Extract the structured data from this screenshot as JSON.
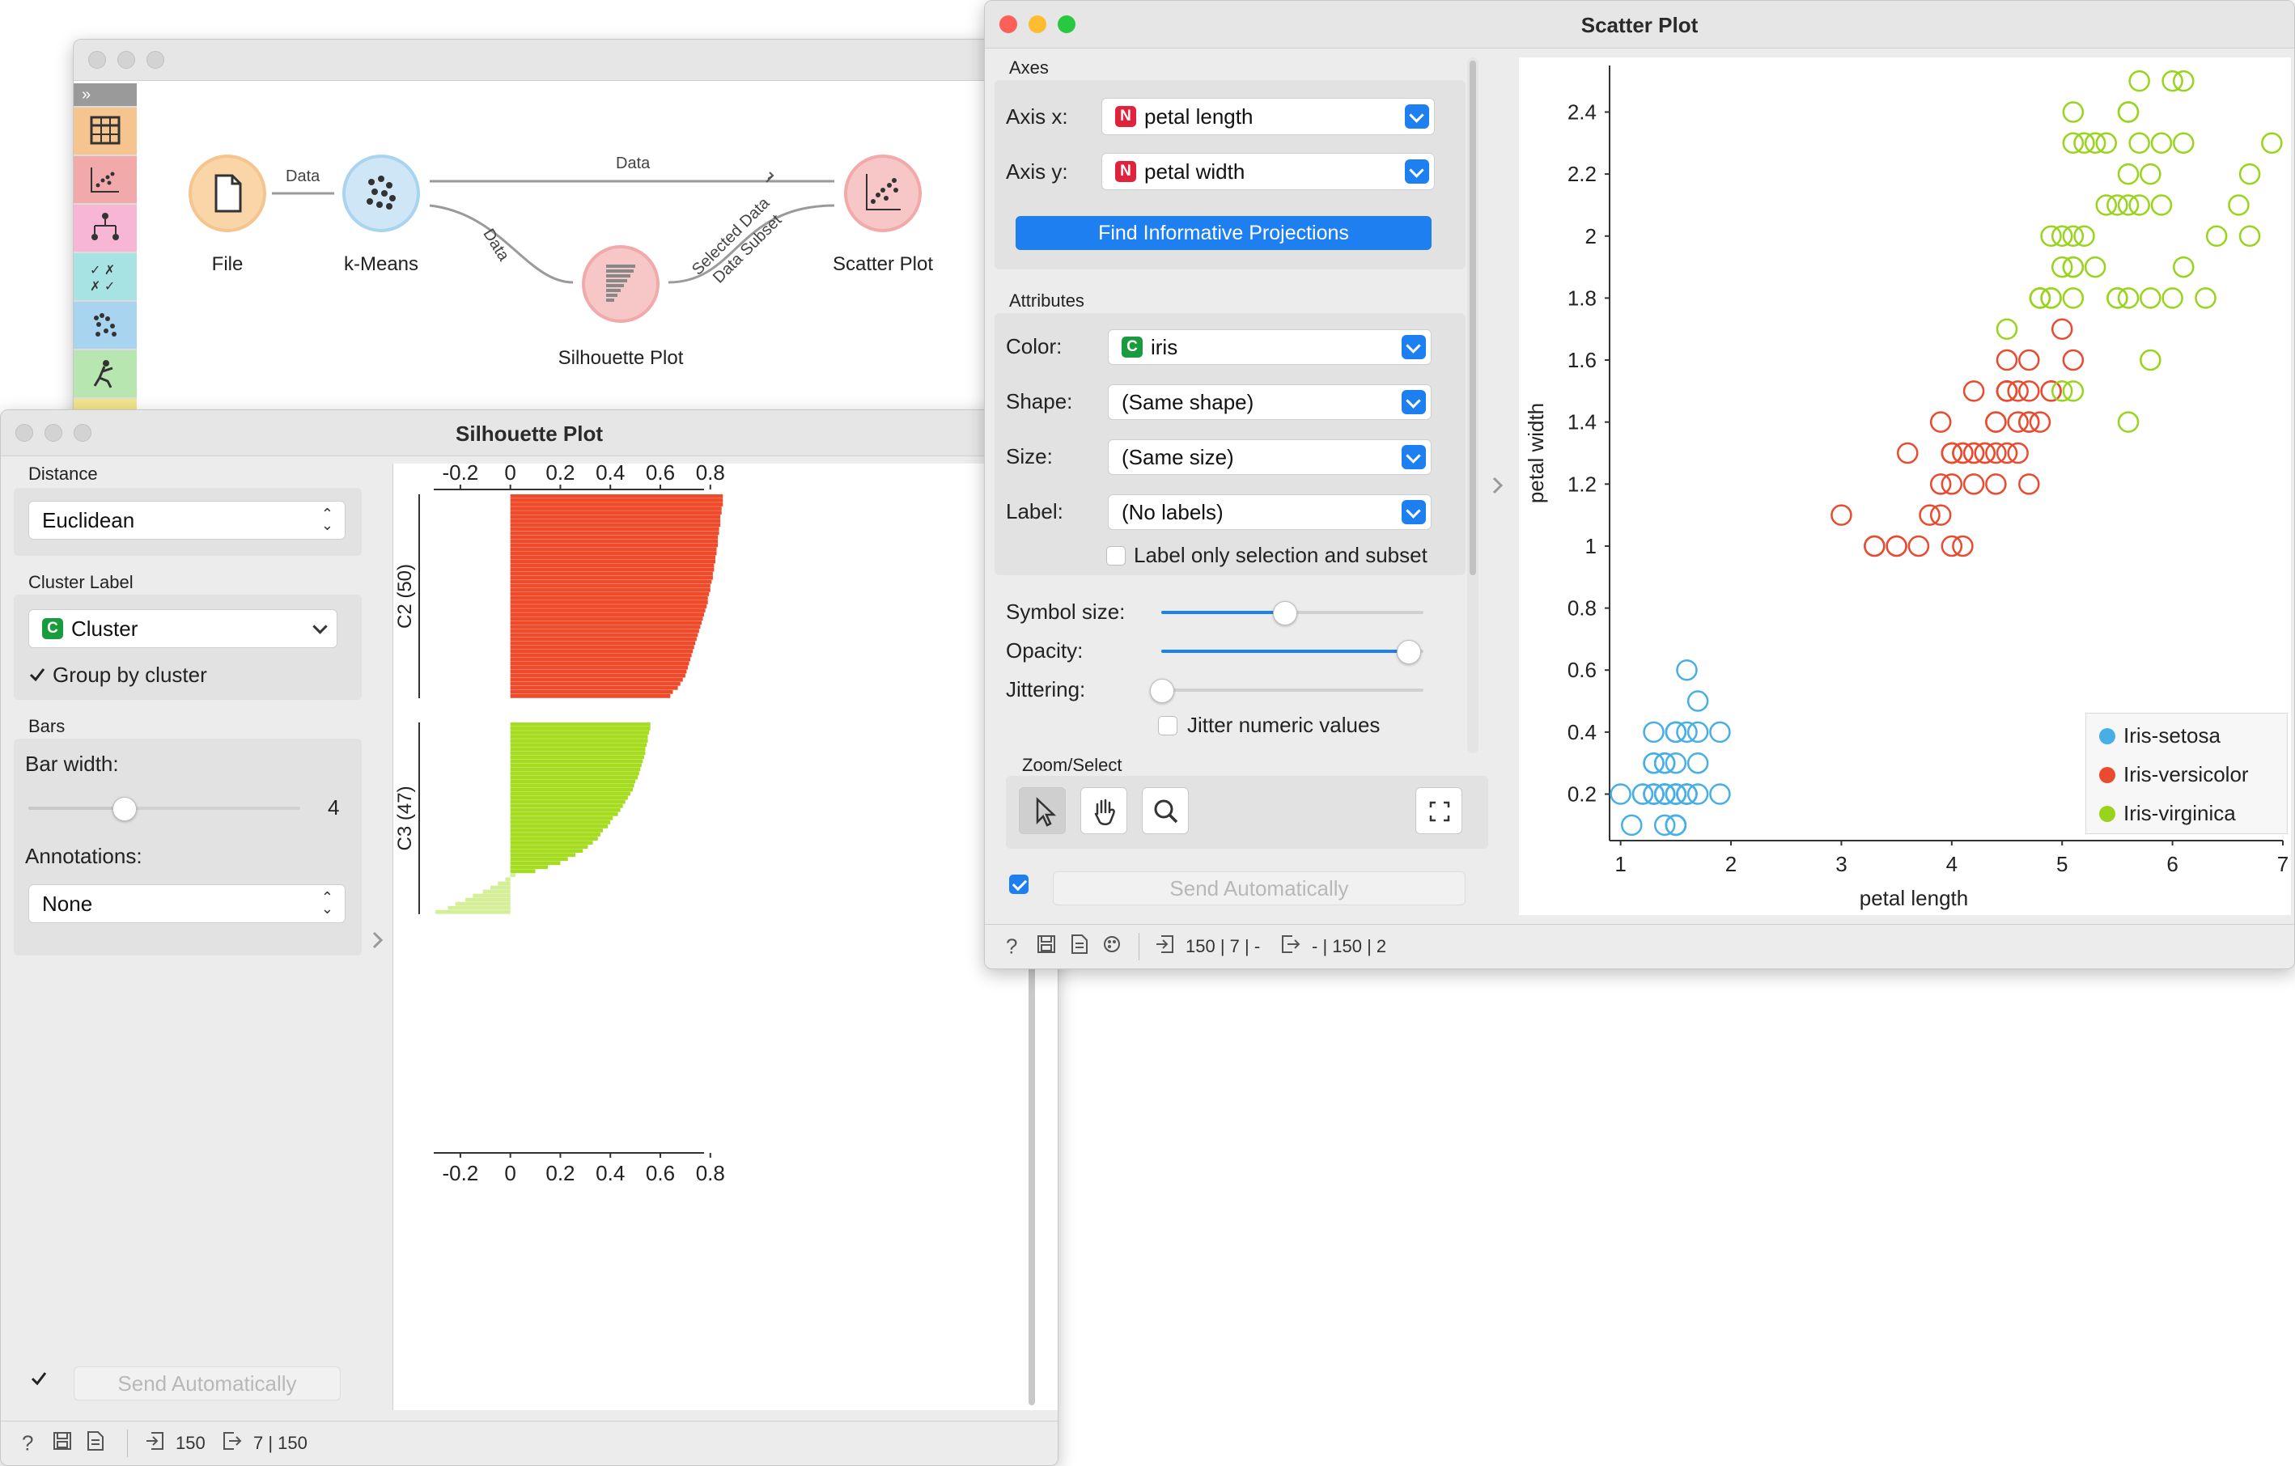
{
  "canvas": {
    "widgets": [
      {
        "id": "file",
        "label": "File"
      },
      {
        "id": "kmeans",
        "label": "k-Means"
      },
      {
        "id": "silhouette",
        "label": "Silhouette Plot"
      },
      {
        "id": "scatter",
        "label": "Scatter Plot"
      }
    ],
    "links": {
      "file_kmeans": "Data",
      "kmeans_scatter": "Data",
      "kmeans_silhouette": "Data",
      "silhouette_scatter_1": "Selected Data",
      "silhouette_scatter_2": "Data Subset"
    },
    "category_colors": [
      "#f6c48e",
      "#f2a9a9",
      "#f7b6d4",
      "#a8e3e3",
      "#a9d4ef",
      "#b8e6b0",
      "#f2e58c"
    ]
  },
  "silhouette": {
    "title": "Silhouette Plot",
    "distance_label": "Distance",
    "distance_value": "Euclidean",
    "cluster_label_title": "Cluster Label",
    "cluster_label_badge": "C",
    "cluster_label_value": "Cluster",
    "group_by_label": "Group by cluster",
    "group_by_checked": true,
    "bars_title": "Bars",
    "bar_width_label": "Bar width:",
    "bar_width_value": "4",
    "bar_width_fraction": 0.35,
    "annotations_label": "Annotations:",
    "annotations_value": "None",
    "send_label": "Send Automatically",
    "send_checked": true,
    "status_in": "150",
    "status_out": "7 | 150"
  },
  "scatter": {
    "title": "Scatter Plot",
    "axes_title": "Axes",
    "axis_x_label": "Axis x:",
    "axis_x_badge": "N",
    "axis_x_value": "petal length",
    "axis_y_label": "Axis y:",
    "axis_y_badge": "N",
    "axis_y_value": "petal width",
    "find_projections": "Find Informative Projections",
    "attributes_title": "Attributes",
    "color_label": "Color:",
    "color_badge": "C",
    "color_value": "iris",
    "shape_label": "Shape:",
    "shape_value": "(Same shape)",
    "size_label": "Size:",
    "size_value": "(Same size)",
    "label_label": "Label:",
    "label_value": "(No labels)",
    "label_only_selection": "Label only selection and subset",
    "symbol_size_label": "Symbol size:",
    "symbol_size_fraction": 0.47,
    "opacity_label": "Opacity:",
    "opacity_fraction": 0.94,
    "jittering_label": "Jittering:",
    "jittering_fraction": 0.0,
    "jitter_numeric": "Jitter numeric values",
    "zoom_select_title": "Zoom/Select",
    "send_label": "Send Automatically",
    "send_checked": true,
    "status_in": "150 | 7 | -",
    "status_out": "- | 150 | 2"
  },
  "colors": {
    "orange": "#ef4a2a",
    "green": "#a6dc20",
    "green_light": "#d5ee98",
    "blue": "#4aa3df",
    "setosa": "#47aee6",
    "versicolor": "#ea4a2f",
    "virginica": "#98d41c",
    "accent": "#1d7ff0"
  },
  "chart_data": [
    {
      "type": "bar",
      "orientation": "horizontal",
      "title": "",
      "xticks": [
        "-0.2",
        "0",
        "0.2",
        "0.4",
        "0.6",
        "0.8"
      ],
      "xlim": [
        -0.3,
        0.85
      ],
      "series": [
        {
          "name": "C2 (50)",
          "color": "#ef4a2a",
          "values": [
            0.85,
            0.85,
            0.85,
            0.845,
            0.845,
            0.84,
            0.84,
            0.84,
            0.835,
            0.835,
            0.83,
            0.83,
            0.83,
            0.825,
            0.825,
            0.82,
            0.82,
            0.815,
            0.815,
            0.81,
            0.81,
            0.805,
            0.8,
            0.8,
            0.795,
            0.79,
            0.79,
            0.785,
            0.78,
            0.775,
            0.77,
            0.765,
            0.76,
            0.755,
            0.75,
            0.745,
            0.74,
            0.735,
            0.73,
            0.725,
            0.72,
            0.715,
            0.71,
            0.705,
            0.7,
            0.69,
            0.68,
            0.67,
            0.65,
            0.64
          ]
        },
        {
          "name": "C3 (47)",
          "color": "#a6dc20",
          "values": [
            0.56,
            0.56,
            0.555,
            0.55,
            0.55,
            0.545,
            0.54,
            0.54,
            0.535,
            0.53,
            0.525,
            0.52,
            0.515,
            0.51,
            0.5,
            0.495,
            0.49,
            0.48,
            0.47,
            0.46,
            0.45,
            0.44,
            0.43,
            0.41,
            0.4,
            0.39,
            0.37,
            0.36,
            0.35,
            0.33,
            0.31,
            0.29,
            0.26,
            0.23,
            0.2,
            0.15,
            0.1,
            0.02,
            -0.02,
            -0.05,
            -0.08,
            -0.11,
            -0.15,
            -0.18,
            -0.22,
            -0.25,
            -0.3
          ]
        }
      ]
    },
    {
      "type": "scatter",
      "title": "",
      "xlabel": "petal length",
      "ylabel": "petal width",
      "xlim": [
        0.9,
        7
      ],
      "ylim": [
        0.05,
        2.55
      ],
      "xticks": [
        "1",
        "2",
        "3",
        "4",
        "5",
        "6",
        "7"
      ],
      "yticks": [
        "0.2",
        "0.4",
        "0.6",
        "0.8",
        "1",
        "1.2",
        "1.4",
        "1.6",
        "1.8",
        "2",
        "2.2",
        "2.4"
      ],
      "legend_position": "bottom-right",
      "series": [
        {
          "name": "Iris-setosa",
          "color": "#47aee6",
          "points": [
            [
              1.4,
              0.2
            ],
            [
              1.4,
              0.2
            ],
            [
              1.3,
              0.2
            ],
            [
              1.5,
              0.2
            ],
            [
              1.4,
              0.2
            ],
            [
              1.7,
              0.4
            ],
            [
              1.4,
              0.3
            ],
            [
              1.5,
              0.2
            ],
            [
              1.4,
              0.2
            ],
            [
              1.5,
              0.1
            ],
            [
              1.5,
              0.2
            ],
            [
              1.6,
              0.2
            ],
            [
              1.4,
              0.1
            ],
            [
              1.1,
              0.1
            ],
            [
              1.2,
              0.2
            ],
            [
              1.5,
              0.4
            ],
            [
              1.3,
              0.4
            ],
            [
              1.4,
              0.3
            ],
            [
              1.7,
              0.3
            ],
            [
              1.5,
              0.3
            ],
            [
              1.7,
              0.2
            ],
            [
              1.5,
              0.4
            ],
            [
              1.0,
              0.2
            ],
            [
              1.7,
              0.5
            ],
            [
              1.9,
              0.2
            ],
            [
              1.6,
              0.2
            ],
            [
              1.6,
              0.4
            ],
            [
              1.5,
              0.2
            ],
            [
              1.4,
              0.2
            ],
            [
              1.6,
              0.2
            ],
            [
              1.6,
              0.2
            ],
            [
              1.5,
              0.4
            ],
            [
              1.5,
              0.1
            ],
            [
              1.4,
              0.2
            ],
            [
              1.5,
              0.1
            ],
            [
              1.2,
              0.2
            ],
            [
              1.3,
              0.2
            ],
            [
              1.5,
              0.1
            ],
            [
              1.3,
              0.2
            ],
            [
              1.5,
              0.2
            ],
            [
              1.3,
              0.3
            ],
            [
              1.3,
              0.3
            ],
            [
              1.3,
              0.2
            ],
            [
              1.6,
              0.6
            ],
            [
              1.9,
              0.4
            ],
            [
              1.4,
              0.3
            ],
            [
              1.6,
              0.2
            ],
            [
              1.4,
              0.2
            ],
            [
              1.5,
              0.2
            ],
            [
              1.4,
              0.2
            ]
          ]
        },
        {
          "name": "Iris-versicolor",
          "color": "#ea4a2f",
          "points": [
            [
              4.7,
              1.4
            ],
            [
              4.5,
              1.5
            ],
            [
              4.9,
              1.5
            ],
            [
              4.0,
              1.3
            ],
            [
              4.6,
              1.5
            ],
            [
              4.5,
              1.3
            ],
            [
              4.7,
              1.6
            ],
            [
              3.3,
              1.0
            ],
            [
              4.6,
              1.3
            ],
            [
              3.9,
              1.4
            ],
            [
              3.5,
              1.0
            ],
            [
              4.2,
              1.5
            ],
            [
              4.0,
              1.0
            ],
            [
              4.7,
              1.4
            ],
            [
              3.6,
              1.3
            ],
            [
              4.4,
              1.4
            ],
            [
              4.5,
              1.5
            ],
            [
              4.1,
              1.0
            ],
            [
              4.5,
              1.5
            ],
            [
              3.9,
              1.1
            ],
            [
              4.8,
              1.8
            ],
            [
              4.0,
              1.3
            ],
            [
              4.9,
              1.5
            ],
            [
              4.7,
              1.2
            ],
            [
              4.3,
              1.3
            ],
            [
              4.4,
              1.4
            ],
            [
              4.8,
              1.4
            ],
            [
              5.0,
              1.7
            ],
            [
              4.5,
              1.5
            ],
            [
              3.5,
              1.0
            ],
            [
              3.8,
              1.1
            ],
            [
              3.7,
              1.0
            ],
            [
              3.9,
              1.2
            ],
            [
              5.1,
              1.6
            ],
            [
              4.5,
              1.5
            ],
            [
              4.5,
              1.6
            ],
            [
              4.7,
              1.5
            ],
            [
              4.4,
              1.3
            ],
            [
              4.1,
              1.3
            ],
            [
              4.0,
              1.3
            ],
            [
              4.4,
              1.2
            ],
            [
              4.6,
              1.4
            ],
            [
              4.0,
              1.2
            ],
            [
              3.3,
              1.0
            ],
            [
              4.2,
              1.3
            ],
            [
              4.2,
              1.2
            ],
            [
              4.2,
              1.3
            ],
            [
              4.3,
              1.3
            ],
            [
              3.0,
              1.1
            ],
            [
              4.1,
              1.3
            ]
          ]
        },
        {
          "name": "Iris-virginica",
          "color": "#98d41c",
          "points": [
            [
              6.0,
              2.5
            ],
            [
              5.1,
              1.9
            ],
            [
              5.9,
              2.1
            ],
            [
              5.6,
              1.8
            ],
            [
              5.8,
              2.2
            ],
            [
              6.6,
              2.1
            ],
            [
              4.5,
              1.7
            ],
            [
              6.3,
              1.8
            ],
            [
              5.8,
              1.8
            ],
            [
              6.1,
              2.5
            ],
            [
              5.1,
              2.0
            ],
            [
              5.3,
              1.9
            ],
            [
              5.5,
              2.1
            ],
            [
              5.0,
              2.0
            ],
            [
              5.1,
              2.4
            ],
            [
              5.3,
              2.3
            ],
            [
              5.5,
              1.8
            ],
            [
              6.7,
              2.2
            ],
            [
              6.9,
              2.3
            ],
            [
              5.0,
              1.5
            ],
            [
              5.7,
              2.3
            ],
            [
              4.9,
              2.0
            ],
            [
              6.7,
              2.0
            ],
            [
              4.9,
              1.8
            ],
            [
              5.7,
              2.1
            ],
            [
              6.0,
              1.8
            ],
            [
              4.8,
              1.8
            ],
            [
              4.9,
              1.8
            ],
            [
              5.6,
              2.1
            ],
            [
              5.8,
              1.6
            ],
            [
              6.1,
              1.9
            ],
            [
              6.4,
              2.0
            ],
            [
              5.6,
              2.2
            ],
            [
              5.1,
              1.5
            ],
            [
              5.6,
              1.4
            ],
            [
              6.1,
              2.3
            ],
            [
              5.6,
              2.4
            ],
            [
              5.5,
              1.8
            ],
            [
              4.8,
              1.8
            ],
            [
              5.4,
              2.1
            ],
            [
              5.6,
              2.4
            ],
            [
              5.1,
              2.3
            ],
            [
              5.1,
              1.9
            ],
            [
              5.9,
              2.3
            ],
            [
              5.7,
              2.5
            ],
            [
              5.2,
              2.3
            ],
            [
              5.0,
              1.9
            ],
            [
              5.2,
              2.0
            ],
            [
              5.4,
              2.3
            ],
            [
              5.1,
              1.8
            ]
          ]
        }
      ]
    }
  ]
}
